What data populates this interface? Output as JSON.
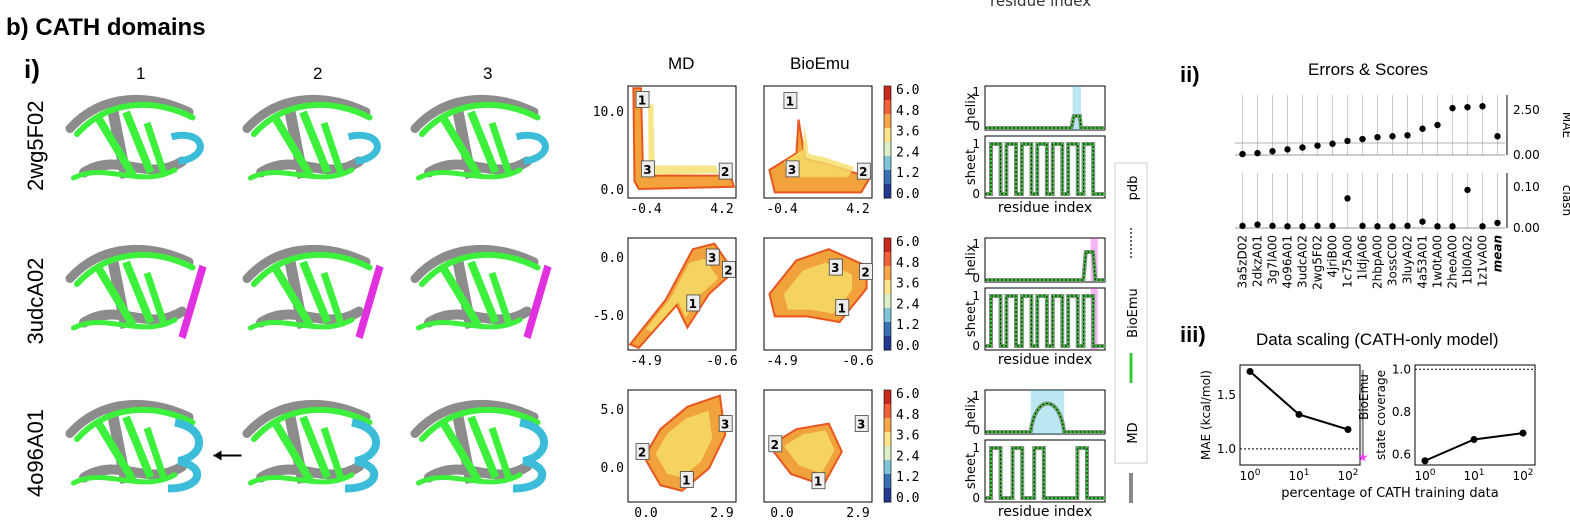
{
  "top_cut_label": "residue index",
  "panel_title": "b) CATH domains",
  "sub_i": "i)",
  "sub_ii": "ii)",
  "sub_iii": "iii)",
  "struct_cols": [
    "1",
    "2",
    "3"
  ],
  "rows": [
    {
      "id": "2wg5F02",
      "accent": "#3bbcd9"
    },
    {
      "id": "3udcA02",
      "accent": "#e030e0"
    },
    {
      "id": "4o96A01",
      "accent": "#3bbcd9"
    }
  ],
  "colors": {
    "bioemu": "#33cc33",
    "md": "#888888",
    "pdb": "#555555",
    "struct_green": "#3cf03c",
    "struct_gray": "#8c8c8c"
  },
  "fes": {
    "col_titles": [
      "MD",
      "BioEmu"
    ],
    "colorbar_ticks": [
      "6.0",
      "4.8",
      "3.6",
      "2.4",
      "1.2",
      "0.0"
    ],
    "rows": [
      {
        "yticks": [
          "10.0",
          "0.0"
        ],
        "xticks": [
          "-0.4",
          "4.2"
        ],
        "md_labels": [
          "1",
          "3",
          "2"
        ],
        "bio_labels": [
          "1",
          "3",
          "2"
        ]
      },
      {
        "yticks": [
          "0.0",
          "-5.0"
        ],
        "xticks": [
          "-4.9",
          "-0.6"
        ],
        "md_labels": [
          "3",
          "2",
          "1"
        ],
        "bio_labels": [
          "3",
          "2",
          "1"
        ]
      },
      {
        "yticks": [
          "5.0",
          "0.0"
        ],
        "xticks": [
          "0.0",
          "2.9"
        ],
        "md_labels": [
          "2",
          "3",
          "1"
        ],
        "bio_labels": [
          "2",
          "3",
          "1"
        ]
      }
    ]
  },
  "ss": {
    "helix_label": "helix",
    "sheet_label": "sheet",
    "xlabel": "residue index",
    "yticks_helix": [
      "1",
      "0"
    ],
    "yticks_sheet": [
      "1",
      "0"
    ],
    "legend": [
      "pdb",
      "BioEmu",
      "MD"
    ]
  },
  "chart_data": [
    {
      "type": "scatter",
      "title": "Errors & Scores",
      "categories": [
        "3a5zD02",
        "2dkzA01",
        "3g7lA00",
        "4o96A01",
        "3udcA02",
        "2wg5F02",
        "4jriB00",
        "1c75A00",
        "1ldjA06",
        "2hbpA00",
        "3ossC00",
        "3luyA02",
        "4a53A01",
        "1w0tA00",
        "2heoA00",
        "1bl0A02",
        "1z1vA00",
        "mean"
      ],
      "series": [
        {
          "name": "MAE",
          "values": [
            0.05,
            0.1,
            0.2,
            0.3,
            0.4,
            0.5,
            0.6,
            0.75,
            0.85,
            0.95,
            1.0,
            1.05,
            1.4,
            1.6,
            2.5,
            2.55,
            2.6,
            1.0
          ],
          "yticks": [
            "0.00",
            "2.50"
          ],
          "ylim": [
            0,
            3.2
          ]
        },
        {
          "name": "clash",
          "values": [
            0.005,
            0.008,
            0.005,
            0.004,
            0.004,
            0.005,
            0.005,
            0.07,
            0.005,
            0.004,
            0.004,
            0.005,
            0.015,
            0.004,
            0.004,
            0.09,
            0.004,
            0.012
          ],
          "yticks": [
            "0.00",
            "0.10"
          ],
          "ylim": [
            0,
            0.13
          ]
        }
      ]
    },
    {
      "type": "line",
      "title": "Data scaling (CATH-only model)",
      "xlabel": "percentage of CATH training data",
      "xticks": [
        "10^0",
        "10^1",
        "10^2"
      ],
      "panels": [
        {
          "ylabel": "MAE (kcal/mol)",
          "x": [
            1,
            10,
            100
          ],
          "y": [
            1.72,
            1.32,
            1.18
          ],
          "yticks": [
            "1.0",
            "1.5"
          ],
          "ylim": [
            0.85,
            1.78
          ],
          "ref": 1.0,
          "bioemu_label": "BioEmu",
          "bioemu_point": [
            200,
            0.93
          ]
        },
        {
          "ylabel": "state coverage",
          "x": [
            1,
            10,
            100
          ],
          "y": [
            0.57,
            0.67,
            0.7
          ],
          "yticks": [
            "0.6",
            "0.8",
            "1.0"
          ],
          "ylim": [
            0.55,
            1.02
          ],
          "ref": 1.0
        }
      ]
    }
  ]
}
